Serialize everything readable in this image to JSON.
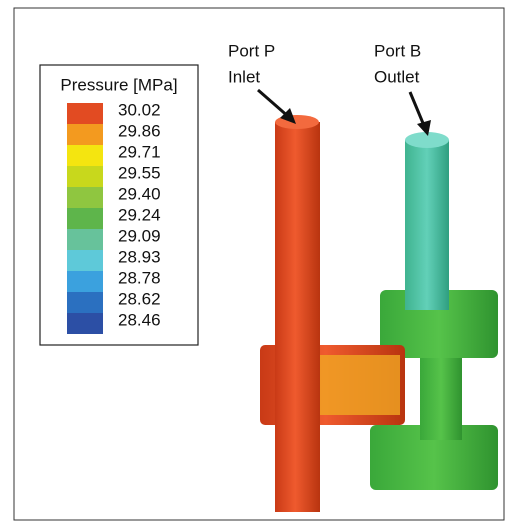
{
  "legend": {
    "title": "Pressure [MPa]",
    "entries": [
      {
        "label": "30.02",
        "color": "#e24b22"
      },
      {
        "label": "29.86",
        "color": "#f39a1f"
      },
      {
        "label": "29.71",
        "color": "#f4e510"
      },
      {
        "label": "29.55",
        "color": "#c8d81c"
      },
      {
        "label": "29.40",
        "color": "#8fc640"
      },
      {
        "label": "29.24",
        "color": "#5eb54b"
      },
      {
        "label": "29.09",
        "color": "#67c29b"
      },
      {
        "label": "28.93",
        "color": "#5ec9d9"
      },
      {
        "label": "28.78",
        "color": "#3ba1de"
      },
      {
        "label": "28.62",
        "color": "#2b70c0"
      },
      {
        "label": "28.46",
        "color": "#2c4fa5"
      }
    ]
  },
  "annotations": [
    {
      "lines": [
        "Port P",
        "Inlet"
      ]
    },
    {
      "lines": [
        "Port B",
        "Outlet"
      ]
    }
  ]
}
